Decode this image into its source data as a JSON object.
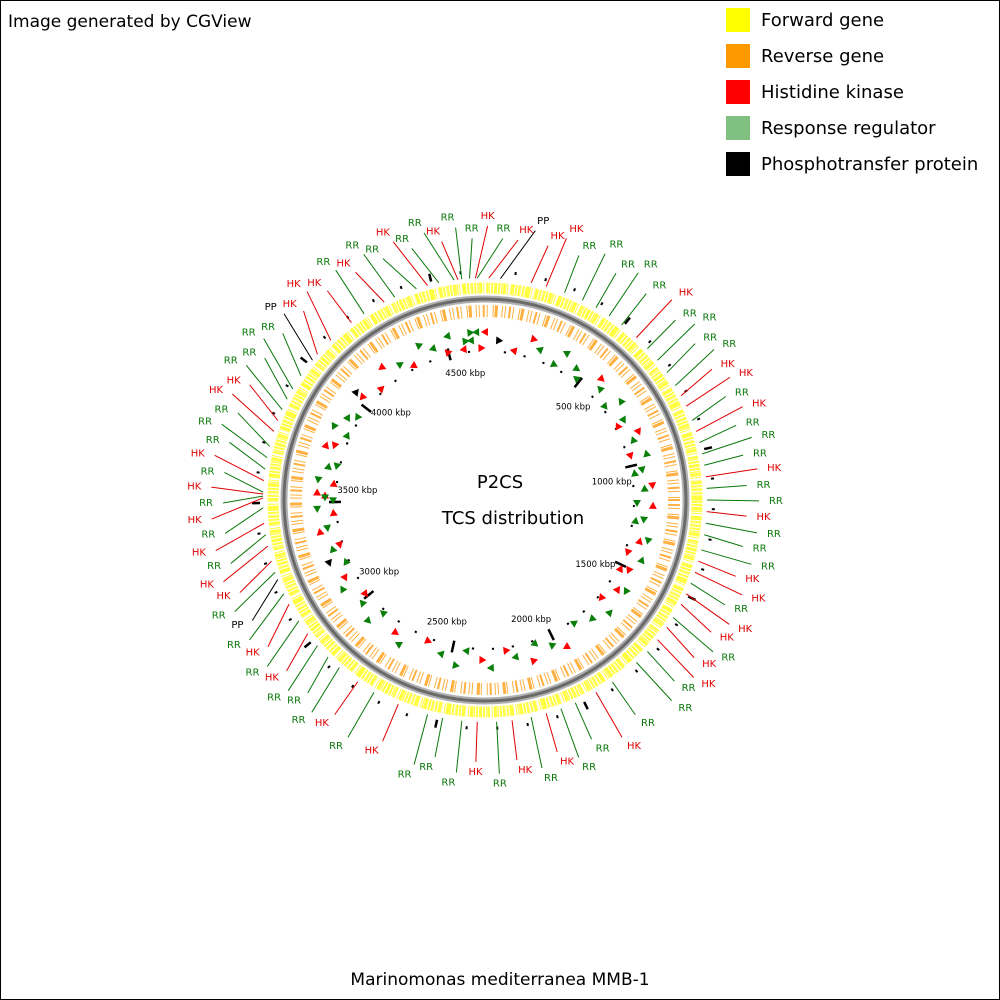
{
  "header": {
    "text": "Image generated by CGView"
  },
  "legend": [
    {
      "label": "Forward gene",
      "color": "#ffff00"
    },
    {
      "label": "Reverse gene",
      "color": "#ff9900"
    },
    {
      "label": "Histidine kinase",
      "color": "#ff0000"
    },
    {
      "label": "Response regulator",
      "color": "#80c080"
    },
    {
      "label": "Phosphotransfer protein",
      "color": "#000000"
    }
  ],
  "map": {
    "title": "P2CS",
    "subtitle": "TCS distribution",
    "range_kbp": [
      0,
      4680
    ],
    "minor_tick_step_kbp": 100,
    "scale_ticks": [
      {
        "value": 500,
        "label": "500 kbp"
      },
      {
        "value": 1000,
        "label": "1000 kbp"
      },
      {
        "value": 1500,
        "label": "1500 kbp"
      },
      {
        "value": 2000,
        "label": "2000 kbp"
      },
      {
        "value": 2500,
        "label": "2500 kbp"
      },
      {
        "value": 3000,
        "label": "3000 kbp"
      },
      {
        "value": 3500,
        "label": "3500 kbp"
      },
      {
        "value": 4000,
        "label": "4000 kbp"
      },
      {
        "value": 4500,
        "label": "4500 kbp"
      }
    ],
    "label_colors": {
      "HK": "#e00000",
      "RR": "#0a780a",
      "PP": "#000000"
    },
    "features": [
      {
        "label": "HK",
        "kbp": 13
      },
      {
        "label": "PP",
        "kbp": 52
      },
      {
        "label": "HK",
        "kbp": 156
      },
      {
        "label": "HK",
        "kbp": 208
      },
      {
        "label": "RR",
        "kbp": 273
      },
      {
        "label": "RR",
        "kbp": 338
      },
      {
        "label": "RR",
        "kbp": 390
      },
      {
        "label": "RR",
        "kbp": 442
      },
      {
        "label": "RR",
        "kbp": 494
      },
      {
        "label": "HK",
        "kbp": 559
      },
      {
        "label": "RR",
        "kbp": 611
      },
      {
        "label": "RR",
        "kbp": 663
      },
      {
        "label": "RR",
        "kbp": 715
      },
      {
        "label": "RR",
        "kbp": 767
      },
      {
        "label": "HK",
        "kbp": 806
      },
      {
        "label": "HK",
        "kbp": 845
      },
      {
        "label": "RR",
        "kbp": 897
      },
      {
        "label": "HK",
        "kbp": 936
      },
      {
        "label": "RR",
        "kbp": 975
      },
      {
        "label": "RR",
        "kbp": 1014
      },
      {
        "label": "RR",
        "kbp": 1053
      },
      {
        "label": "HK",
        "kbp": 1092
      },
      {
        "label": "RR",
        "kbp": 1131
      },
      {
        "label": "RR",
        "kbp": 1170
      },
      {
        "label": "HK",
        "kbp": 1209
      },
      {
        "label": "RR",
        "kbp": 1248
      },
      {
        "label": "RR",
        "kbp": 1287
      },
      {
        "label": "RR",
        "kbp": 1339
      },
      {
        "label": "HK",
        "kbp": 1378
      },
      {
        "label": "HK",
        "kbp": 1417
      },
      {
        "label": "RR",
        "kbp": 1456
      },
      {
        "label": "HK",
        "kbp": 1495
      },
      {
        "label": "HK",
        "kbp": 1534
      },
      {
        "label": "RR",
        "kbp": 1586
      },
      {
        "label": "HK",
        "kbp": 1625
      },
      {
        "label": "HK",
        "kbp": 1677
      },
      {
        "label": "RR",
        "kbp": 1729
      },
      {
        "label": "RR",
        "kbp": 1781
      },
      {
        "label": "RR",
        "kbp": 1885
      },
      {
        "label": "HK",
        "kbp": 1950
      },
      {
        "label": "RR",
        "kbp": 2028
      },
      {
        "label": "RR",
        "kbp": 2080
      },
      {
        "label": "HK",
        "kbp": 2132
      },
      {
        "label": "RR",
        "kbp": 2184
      },
      {
        "label": "HK",
        "kbp": 2249
      },
      {
        "label": "RR",
        "kbp": 2301
      },
      {
        "label": "HK",
        "kbp": 2366
      },
      {
        "label": "RR",
        "kbp": 2418
      },
      {
        "label": "RR",
        "kbp": 2483
      },
      {
        "label": "RR",
        "kbp": 2535
      },
      {
        "label": "HK",
        "kbp": 2639
      },
      {
        "label": "RR",
        "kbp": 2730
      },
      {
        "label": "HK",
        "kbp": 2795
      },
      {
        "label": "RR",
        "kbp": 2873
      },
      {
        "label": "RR",
        "kbp": 2925
      },
      {
        "label": "RR",
        "kbp": 2977
      },
      {
        "label": "HK",
        "kbp": 3029
      },
      {
        "label": "RR",
        "kbp": 3081
      },
      {
        "label": "HK",
        "kbp": 3146
      },
      {
        "label": "RR",
        "kbp": 3185
      },
      {
        "label": "PP",
        "kbp": 3237
      },
      {
        "label": "RR",
        "kbp": 3263
      },
      {
        "label": "HK",
        "kbp": 3302
      },
      {
        "label": "HK",
        "kbp": 3354
      },
      {
        "label": "RR",
        "kbp": 3393
      },
      {
        "label": "HK",
        "kbp": 3432
      },
      {
        "label": "RR",
        "kbp": 3484
      },
      {
        "label": "HK",
        "kbp": 3517
      },
      {
        "label": "RR",
        "kbp": 3523
      },
      {
        "label": "HK",
        "kbp": 3530
      },
      {
        "label": "RR",
        "kbp": 3536
      },
      {
        "label": "HK",
        "kbp": 3575
      },
      {
        "label": "RR",
        "kbp": 3614
      },
      {
        "label": "RR",
        "kbp": 3653
      },
      {
        "label": "RR",
        "kbp": 3692
      },
      {
        "label": "HK",
        "kbp": 3744
      },
      {
        "label": "HK",
        "kbp": 3783
      },
      {
        "label": "RR",
        "kbp": 3822
      },
      {
        "label": "RR",
        "kbp": 3861
      },
      {
        "label": "RR",
        "kbp": 3900
      },
      {
        "label": "RR",
        "kbp": 3952
      },
      {
        "label": "PP",
        "kbp": 4017
      },
      {
        "label": "HK",
        "kbp": 4043
      },
      {
        "label": "HK",
        "kbp": 4108
      },
      {
        "label": "HK",
        "kbp": 4199
      },
      {
        "label": "RR",
        "kbp": 4251
      },
      {
        "label": "HK",
        "kbp": 4329
      },
      {
        "label": "RR",
        "kbp": 4368
      },
      {
        "label": "RR",
        "kbp": 4446
      },
      {
        "label": "HK",
        "kbp": 4485
      },
      {
        "label": "RR",
        "kbp": 4524
      },
      {
        "label": "RR",
        "kbp": 4576
      },
      {
        "label": "HK",
        "kbp": 4589
      },
      {
        "label": "RR",
        "kbp": 4602
      },
      {
        "label": "RR",
        "kbp": 4628
      },
      {
        "label": "HK",
        "kbp": 4648
      },
      {
        "label": "RR",
        "kbp": 4654
      }
    ]
  },
  "footer": {
    "text": "Marinomonas mediterranea MMB-1"
  }
}
